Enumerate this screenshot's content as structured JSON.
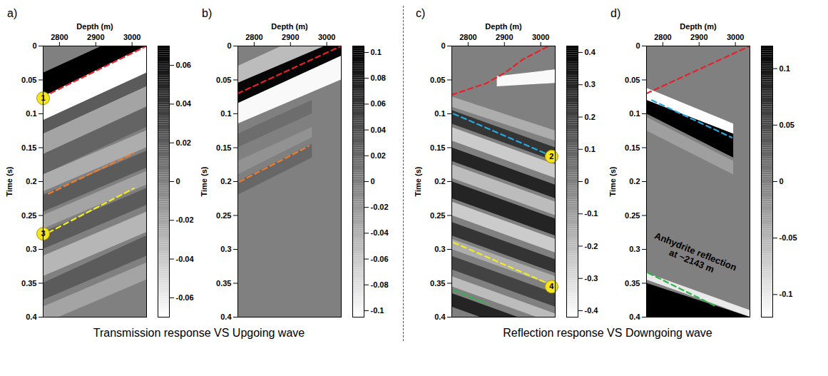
{
  "chart_data": [
    {
      "type": "heatmap",
      "panel": "a)",
      "xlabel": "Depth (m)",
      "ylabel": "Time (s)",
      "xlim": [
        2755,
        3040
      ],
      "xticks": [
        2800,
        2900,
        3000
      ],
      "ylim": [
        0,
        0.4
      ],
      "yticks": [
        0,
        0.05,
        0.1,
        0.15,
        0.2,
        0.25,
        0.3,
        0.35,
        0.4
      ],
      "colorbar": {
        "range": [
          -0.07,
          0.07
        ],
        "ticks": [
          -0.06,
          -0.04,
          -0.02,
          0,
          0.02,
          0.04,
          0.06
        ]
      },
      "events": [
        {
          "depth": [
            2755,
            3040
          ],
          "top": [
            0.04,
            -0.03
          ],
          "bottom": [
            0.075,
            0.0
          ],
          "value": 0.07
        },
        {
          "depth": [
            2755,
            3040
          ],
          "top": [
            0.075,
            0.0
          ],
          "bottom": [
            0.11,
            0.04
          ],
          "value": -0.07
        },
        {
          "depth": [
            2755,
            3040
          ],
          "top": [
            0.11,
            0.04
          ],
          "bottom": [
            0.13,
            0.06
          ],
          "value": 0.02
        },
        {
          "depth": [
            2755,
            3040
          ],
          "top": [
            0.13,
            0.06
          ],
          "bottom": [
            0.16,
            0.09
          ],
          "value": -0.02
        },
        {
          "depth": [
            2755,
            3040
          ],
          "top": [
            0.16,
            0.09
          ],
          "bottom": [
            0.19,
            0.12
          ],
          "value": 0.015
        },
        {
          "depth": [
            2755,
            3040
          ],
          "top": [
            0.19,
            0.125
          ],
          "bottom": [
            0.215,
            0.15
          ],
          "value": -0.025
        },
        {
          "depth": [
            2755,
            3040
          ],
          "top": [
            0.22,
            0.155
          ],
          "bottom": [
            0.245,
            0.18
          ],
          "value": 0.02
        },
        {
          "depth": [
            2755,
            3040
          ],
          "top": [
            0.25,
            0.185
          ],
          "bottom": [
            0.27,
            0.205
          ],
          "value": -0.02
        },
        {
          "depth": [
            2755,
            3040
          ],
          "top": [
            0.275,
            0.21
          ],
          "bottom": [
            0.3,
            0.235
          ],
          "value": 0.02
        },
        {
          "depth": [
            2755,
            3040
          ],
          "top": [
            0.31,
            0.245
          ],
          "bottom": [
            0.34,
            0.275
          ],
          "value": -0.03
        },
        {
          "depth": [
            2755,
            3040
          ],
          "top": [
            0.35,
            0.28
          ],
          "bottom": [
            0.375,
            0.31
          ],
          "value": 0.02
        },
        {
          "depth": [
            2755,
            3040
          ],
          "top": [
            0.385,
            0.32
          ],
          "bottom": [
            0.41,
            0.345
          ],
          "value": -0.02
        }
      ],
      "lines": [
        {
          "color": "#e8202a",
          "line_style": "dashed",
          "x": [
            2755,
            3040
          ],
          "y": [
            0.075,
            0.0
          ]
        },
        {
          "color": "#f07d2c",
          "line_style": "dashed",
          "x": [
            2770,
            3005
          ],
          "y": [
            0.218,
            0.158
          ]
        },
        {
          "color": "#f2ec1a",
          "line_style": "dashed",
          "x": [
            2770,
            3005
          ],
          "y": [
            0.275,
            0.21
          ]
        }
      ],
      "markers": [
        {
          "label": "1",
          "x": 2755,
          "y": 0.077
        },
        {
          "label": "3",
          "x": 2755,
          "y": 0.277
        }
      ],
      "annotations": []
    },
    {
      "type": "heatmap",
      "panel": "b)",
      "xlabel": "Depth (m)",
      "ylabel": "Time (s)",
      "xlim": [
        2755,
        3040
      ],
      "xticks": [
        2800,
        2900,
        3000
      ],
      "ylim": [
        0,
        0.4
      ],
      "yticks": [
        0,
        0.05,
        0.1,
        0.15,
        0.2,
        0.25,
        0.3,
        0.35,
        0.4
      ],
      "colorbar": {
        "range": [
          -0.105,
          0.105
        ],
        "ticks": [
          -0.1,
          -0.08,
          -0.06,
          -0.04,
          -0.02,
          0,
          0.02,
          0.04,
          0.06,
          0.08,
          0.1
        ]
      },
      "events": [
        {
          "depth": [
            2755,
            3040
          ],
          "top": [
            0.03,
            -0.04
          ],
          "bottom": [
            0.055,
            -0.01
          ],
          "value": -0.05
        },
        {
          "depth": [
            2755,
            3040
          ],
          "top": [
            0.055,
            -0.01
          ],
          "bottom": [
            0.085,
            0.015
          ],
          "value": 0.1
        },
        {
          "depth": [
            2755,
            3040
          ],
          "top": [
            0.085,
            0.015
          ],
          "bottom": [
            0.115,
            0.05
          ],
          "value": -0.1
        },
        {
          "depth": [
            2755,
            2960
          ],
          "top": [
            0.13,
            0.08
          ],
          "bottom": [
            0.15,
            0.1
          ],
          "value": 0.015
        },
        {
          "depth": [
            2755,
            2960
          ],
          "top": [
            0.17,
            0.12
          ],
          "bottom": [
            0.19,
            0.135
          ],
          "value": -0.015
        },
        {
          "depth": [
            2755,
            2960
          ],
          "top": [
            0.2,
            0.145
          ],
          "bottom": [
            0.22,
            0.165
          ],
          "value": 0.02
        }
      ],
      "lines": [
        {
          "color": "#e8202a",
          "line_style": "dashed",
          "x": [
            2755,
            3040
          ],
          "y": [
            0.07,
            0.0
          ]
        },
        {
          "color": "#f07d2c",
          "line_style": "dashed",
          "x": [
            2760,
            2950
          ],
          "y": [
            0.2,
            0.148
          ]
        }
      ],
      "markers": [],
      "annotations": []
    },
    {
      "type": "heatmap",
      "panel": "c)",
      "xlabel": "Depth (m)",
      "ylabel": "Time (s)",
      "xlim": [
        2755,
        3040
      ],
      "xticks": [
        2800,
        2900,
        3000
      ],
      "ylim": [
        0,
        0.4
      ],
      "yticks": [
        0,
        0.05,
        0.1,
        0.15,
        0.2,
        0.25,
        0.3,
        0.35,
        0.4
      ],
      "colorbar": {
        "range": [
          -0.42,
          0.42
        ],
        "ticks": [
          -0.4,
          -0.3,
          -0.2,
          -0.1,
          0,
          0.1,
          0.2,
          0.3,
          0.4
        ]
      },
      "events": [
        {
          "depth": [
            2880,
            3040
          ],
          "top": [
            0.045,
            0.035
          ],
          "bottom": [
            0.06,
            0.055
          ],
          "value": -0.4
        },
        {
          "depth": [
            2755,
            3040
          ],
          "top": [
            0.075,
            0.125
          ],
          "bottom": [
            0.09,
            0.14
          ],
          "value": -0.15
        },
        {
          "depth": [
            2755,
            3040
          ],
          "top": [
            0.095,
            0.15
          ],
          "bottom": [
            0.115,
            0.17
          ],
          "value": 0.25
        },
        {
          "depth": [
            2755,
            3040
          ],
          "top": [
            0.12,
            0.175
          ],
          "bottom": [
            0.14,
            0.195
          ],
          "value": -0.25
        },
        {
          "depth": [
            2755,
            3040
          ],
          "top": [
            0.15,
            0.205
          ],
          "bottom": [
            0.17,
            0.225
          ],
          "value": 0.3
        },
        {
          "depth": [
            2755,
            3040
          ],
          "top": [
            0.175,
            0.23
          ],
          "bottom": [
            0.195,
            0.25
          ],
          "value": -0.2
        },
        {
          "depth": [
            2755,
            3040
          ],
          "top": [
            0.2,
            0.255
          ],
          "bottom": [
            0.225,
            0.28
          ],
          "value": 0.3
        },
        {
          "depth": [
            2755,
            3040
          ],
          "top": [
            0.23,
            0.285
          ],
          "bottom": [
            0.25,
            0.305
          ],
          "value": -0.25
        },
        {
          "depth": [
            2755,
            3040
          ],
          "top": [
            0.26,
            0.315
          ],
          "bottom": [
            0.28,
            0.335
          ],
          "value": 0.25
        },
        {
          "depth": [
            2755,
            3040
          ],
          "top": [
            0.285,
            0.34
          ],
          "bottom": [
            0.3,
            0.355
          ],
          "value": -0.15
        },
        {
          "depth": [
            2755,
            3040
          ],
          "top": [
            0.31,
            0.365
          ],
          "bottom": [
            0.33,
            0.385
          ],
          "value": 0.2
        },
        {
          "depth": [
            2755,
            3040
          ],
          "top": [
            0.34,
            0.395
          ],
          "bottom": [
            0.355,
            0.41
          ],
          "value": -0.2
        },
        {
          "depth": [
            2755,
            3040
          ],
          "top": [
            0.365,
            0.42
          ],
          "bottom": [
            0.385,
            0.44
          ],
          "value": 0.3
        }
      ],
      "lines": [
        {
          "color": "#e8202a",
          "line_style": "dashed",
          "x": [
            2755,
            2850,
            2900,
            2950,
            3040
          ],
          "y": [
            0.072,
            0.055,
            0.04,
            0.02,
            -0.005
          ]
        },
        {
          "color": "#25a9e0",
          "line_style": "dashed",
          "x": [
            2760,
            3020
          ],
          "y": [
            0.1,
            0.16
          ]
        },
        {
          "color": "#f2ec1a",
          "line_style": "dashed",
          "x": [
            2760,
            3040
          ],
          "y": [
            0.29,
            0.355
          ]
        },
        {
          "color": "#2db34a",
          "line_style": "dashed",
          "x": [
            2760,
            2850
          ],
          "y": [
            0.36,
            0.38
          ]
        }
      ],
      "markers": [
        {
          "label": "2",
          "x": 3030,
          "y": 0.163
        },
        {
          "label": "4",
          "x": 3030,
          "y": 0.355
        }
      ],
      "annotations": []
    },
    {
      "type": "heatmap",
      "panel": "d)",
      "xlabel": "Depth (m)",
      "ylabel": "Time (s)",
      "xlim": [
        2755,
        3040
      ],
      "xticks": [
        2800,
        2900,
        3000
      ],
      "ylim": [
        0,
        0.4
      ],
      "yticks": [
        0,
        0.05,
        0.1,
        0.15,
        0.2,
        0.25,
        0.3,
        0.35,
        0.4
      ],
      "colorbar": {
        "range": [
          -0.12,
          0.12
        ],
        "ticks": [
          -0.1,
          -0.05,
          0,
          0.05,
          0.1
        ]
      },
      "events": [
        {
          "depth": [
            2755,
            2995
          ],
          "top": [
            0.062,
            0.115
          ],
          "bottom": [
            0.08,
            0.13
          ],
          "value": -0.12
        },
        {
          "depth": [
            2755,
            2995
          ],
          "top": [
            0.08,
            0.13
          ],
          "bottom": [
            0.1,
            0.165
          ],
          "value": 0.12
        },
        {
          "depth": [
            2755,
            2995
          ],
          "top": [
            0.105,
            0.17
          ],
          "bottom": [
            0.125,
            0.19
          ],
          "value": -0.03
        },
        {
          "depth": [
            2755,
            3040
          ],
          "top": [
            0.335,
            0.39
          ],
          "bottom": [
            0.345,
            0.4
          ],
          "value": -0.1
        },
        {
          "depth": [
            2755,
            3040
          ],
          "top": [
            0.35,
            0.4
          ],
          "bottom": [
            0.4,
            0.45
          ],
          "value": 0.12
        }
      ],
      "lines": [
        {
          "color": "#e8202a",
          "line_style": "dashed",
          "x": [
            2755,
            3040
          ],
          "y": [
            0.07,
            0.0
          ]
        },
        {
          "color": "#25a9e0",
          "line_style": "dashed",
          "x": [
            2770,
            2990
          ],
          "y": [
            0.08,
            0.135
          ]
        },
        {
          "color": "#2db34a",
          "line_style": "dashed",
          "x": [
            2760,
            2950
          ],
          "y": [
            0.335,
            0.385
          ]
        }
      ],
      "markers": [],
      "annotations": [
        {
          "text": "Anhydrite reflection\nat ~2143 m",
          "x": 2885,
          "y": 0.31
        }
      ]
    }
  ],
  "captions": [
    "Transmission response VS Upgoing wave",
    "Reflection response VS Downgoing wave"
  ]
}
